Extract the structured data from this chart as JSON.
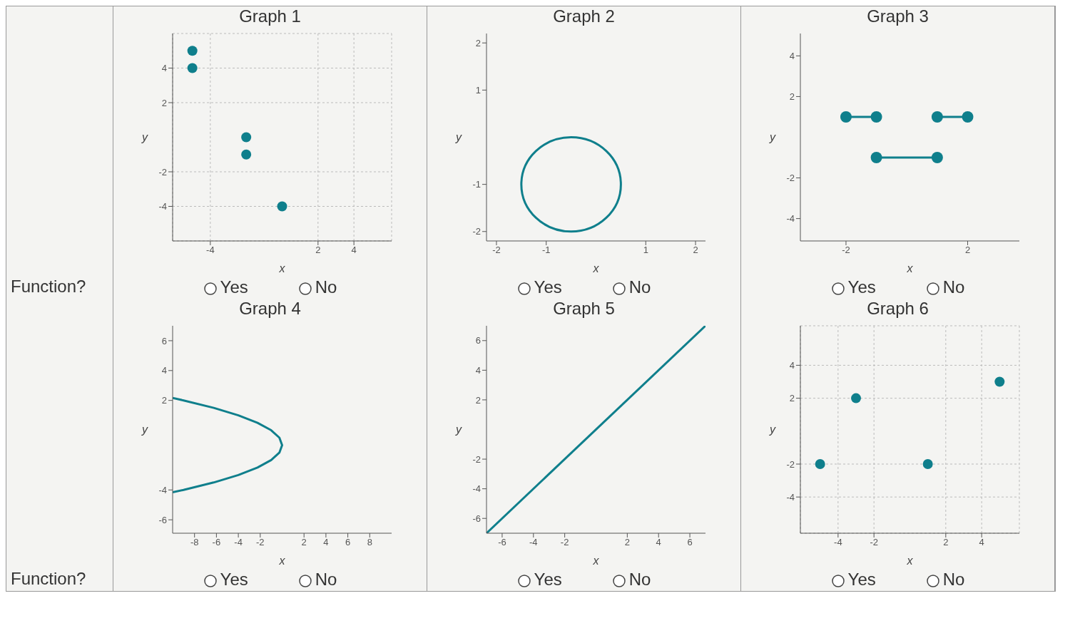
{
  "chart_data": [
    {
      "type": "other",
      "annotations": [
        "Function?"
      ]
    },
    {
      "type": "scatter",
      "title": "Graph 1",
      "xlabel": "x",
      "ylabel": "y",
      "x": [
        -5,
        -5,
        -2,
        -2,
        0
      ],
      "values": [
        5,
        4,
        0,
        -1,
        -4
      ],
      "color": "#0f7f8c",
      "marker": "circle",
      "xlim": [
        -6.1,
        6.1
      ],
      "ylim": [
        -6,
        6
      ],
      "xticks": [
        -4,
        2,
        4
      ],
      "yticks": [
        -4,
        -2,
        2,
        4
      ],
      "grid": true,
      "legend": false,
      "annotations": [
        "Yes",
        "No"
      ]
    },
    {
      "type": "line",
      "title": "Graph 2",
      "xlabel": "x",
      "ylabel": "y",
      "color": "#0f7f8c",
      "xlim": [
        -2.2,
        2.2
      ],
      "ylim": [
        -2.2,
        2.2
      ],
      "xticks": [
        -2,
        -1,
        1,
        2
      ],
      "yticks": [
        -2,
        -1,
        1,
        2
      ],
      "legend": false,
      "annotations": [
        "Yes",
        "No"
      ]
    },
    {
      "type": "line",
      "title": "Graph 3",
      "xlabel": "x",
      "ylabel": "y",
      "series": [
        {
          "color": "#0f7f8c",
          "x": [
            -2,
            -1
          ],
          "values": [
            1,
            1
          ]
        },
        {
          "color": "#0f7f8c",
          "x": [
            1,
            2
          ],
          "values": [
            1,
            1
          ]
        },
        {
          "color": "#0f7f8c",
          "x": [
            -1,
            1
          ],
          "values": [
            -1,
            -1
          ]
        }
      ],
      "marker": "circle",
      "xlim": [
        -3.5,
        3.7
      ],
      "ylim": [
        -5.1,
        5.1
      ],
      "xticks": [
        -2,
        2
      ],
      "yticks": [
        -4,
        -2,
        2,
        4
      ],
      "legend": false,
      "annotations": [
        "Yes",
        "No"
      ]
    },
    {
      "type": "other",
      "annotations": [
        "Function?"
      ]
    },
    {
      "type": "line",
      "title": "Graph 4",
      "xlabel": "x",
      "ylabel": "y",
      "x": [
        -10,
        -9,
        -6.25,
        -4,
        -2.25,
        -1,
        -0.25,
        0,
        -0.25,
        -1,
        -2.25,
        -4,
        -6.25,
        -9,
        -10
      ],
      "values": [
        2.16,
        2,
        1.5,
        1,
        0.5,
        0,
        -0.5,
        -1,
        -1.5,
        -2,
        -2.5,
        -3,
        -3.5,
        -4,
        -4.16
      ],
      "color": "#0f7f8c",
      "marker": "none",
      "xlim": [
        -10,
        10
      ],
      "ylim": [
        -6.9,
        7
      ],
      "xticks": [
        -8,
        -6,
        -4,
        -2,
        2,
        4,
        6,
        8
      ],
      "yticks": [
        -6,
        -4,
        2,
        4,
        6
      ],
      "legend": false,
      "annotations": [
        "Yes",
        "No"
      ]
    },
    {
      "type": "line",
      "title": "Graph 5",
      "xlabel": "x",
      "ylabel": "y",
      "x": [
        -7,
        7
      ],
      "values": [
        -7,
        7
      ],
      "color": "#0f7f8c",
      "marker": "none",
      "xlim": [
        -7,
        7
      ],
      "ylim": [
        -7,
        7
      ],
      "xticks": [
        -6,
        -4,
        -2,
        2,
        4,
        6
      ],
      "yticks": [
        -6,
        -4,
        -2,
        2,
        4,
        6
      ],
      "legend": false,
      "annotations": [
        "Yes",
        "No"
      ]
    },
    {
      "type": "scatter",
      "title": "Graph 6",
      "xlabel": "x",
      "ylabel": "y",
      "x": [
        -5,
        -3,
        1,
        5
      ],
      "values": [
        -2,
        2,
        -2,
        3
      ],
      "color": "#0f7f8c",
      "marker": "circle",
      "xlim": [
        -6.1,
        6.1
      ],
      "ylim": [
        -6.2,
        6.4
      ],
      "xticks": [
        -4,
        -2,
        2,
        4
      ],
      "yticks": [
        -4,
        -2,
        2,
        4
      ],
      "grid": true,
      "legend": false,
      "annotations": [
        "Yes",
        "No"
      ]
    }
  ]
}
